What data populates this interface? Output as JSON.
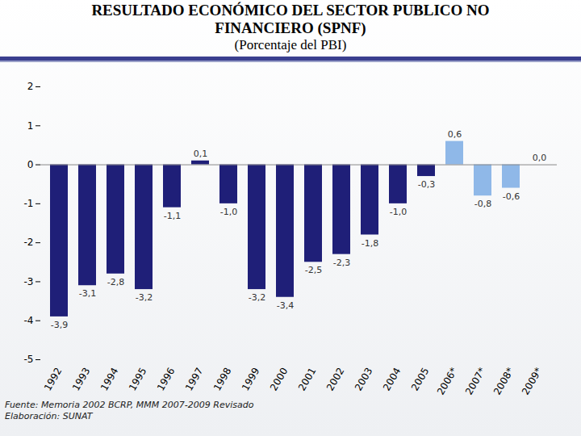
{
  "chart_data": {
    "type": "bar",
    "title": "RESULTADO ECONÓMICO DEL SECTOR PUBLICO NO FINANCIERO (SPNF)",
    "subtitle": "(Porcentaje del PBI)",
    "annotations": [
      "Fuente: Memoria 2002 BCRP, MMM 2007-2009 Revisado",
      "Elaboración: SUNAT"
    ],
    "categories": [
      "1992",
      "1993",
      "1994",
      "1995",
      "1996",
      "1997",
      "1998",
      "1999",
      "2000",
      "2001",
      "2002",
      "2003",
      "2004",
      "2005",
      "2006*",
      "2007*",
      "2008*",
      "2009*"
    ],
    "values": [
      -3.9,
      -3.1,
      -2.8,
      -3.2,
      -1.1,
      0.1,
      -1.0,
      -3.2,
      -3.4,
      -2.5,
      -2.3,
      -1.8,
      -1.0,
      -0.3,
      0.6,
      -0.8,
      -0.6,
      0.0
    ],
    "value_labels": [
      "-3,9",
      "-3,1",
      "-2,8",
      "-3,2",
      "-1,1",
      "0,1",
      "-1,0",
      "-3,2",
      "-3,4",
      "-2,5",
      "-2,3",
      "-1,8",
      "-1,0",
      "-0,3",
      "0,6",
      "-0,8",
      "-0,6",
      "0,0"
    ],
    "colors": [
      "#1f1f78",
      "#1f1f78",
      "#1f1f78",
      "#1f1f78",
      "#1f1f78",
      "#1f1f78",
      "#1f1f78",
      "#1f1f78",
      "#1f1f78",
      "#1f1f78",
      "#1f1f78",
      "#1f1f78",
      "#1f1f78",
      "#1f1f78",
      "#8fb8e8",
      "#8fb8e8",
      "#8fb8e8",
      "#8fb8e8"
    ],
    "ylim": [
      -5,
      2
    ],
    "yticks": [
      -5,
      -4,
      -3,
      -2,
      -1,
      0,
      1,
      2
    ],
    "grid": false,
    "data_labels": true
  }
}
